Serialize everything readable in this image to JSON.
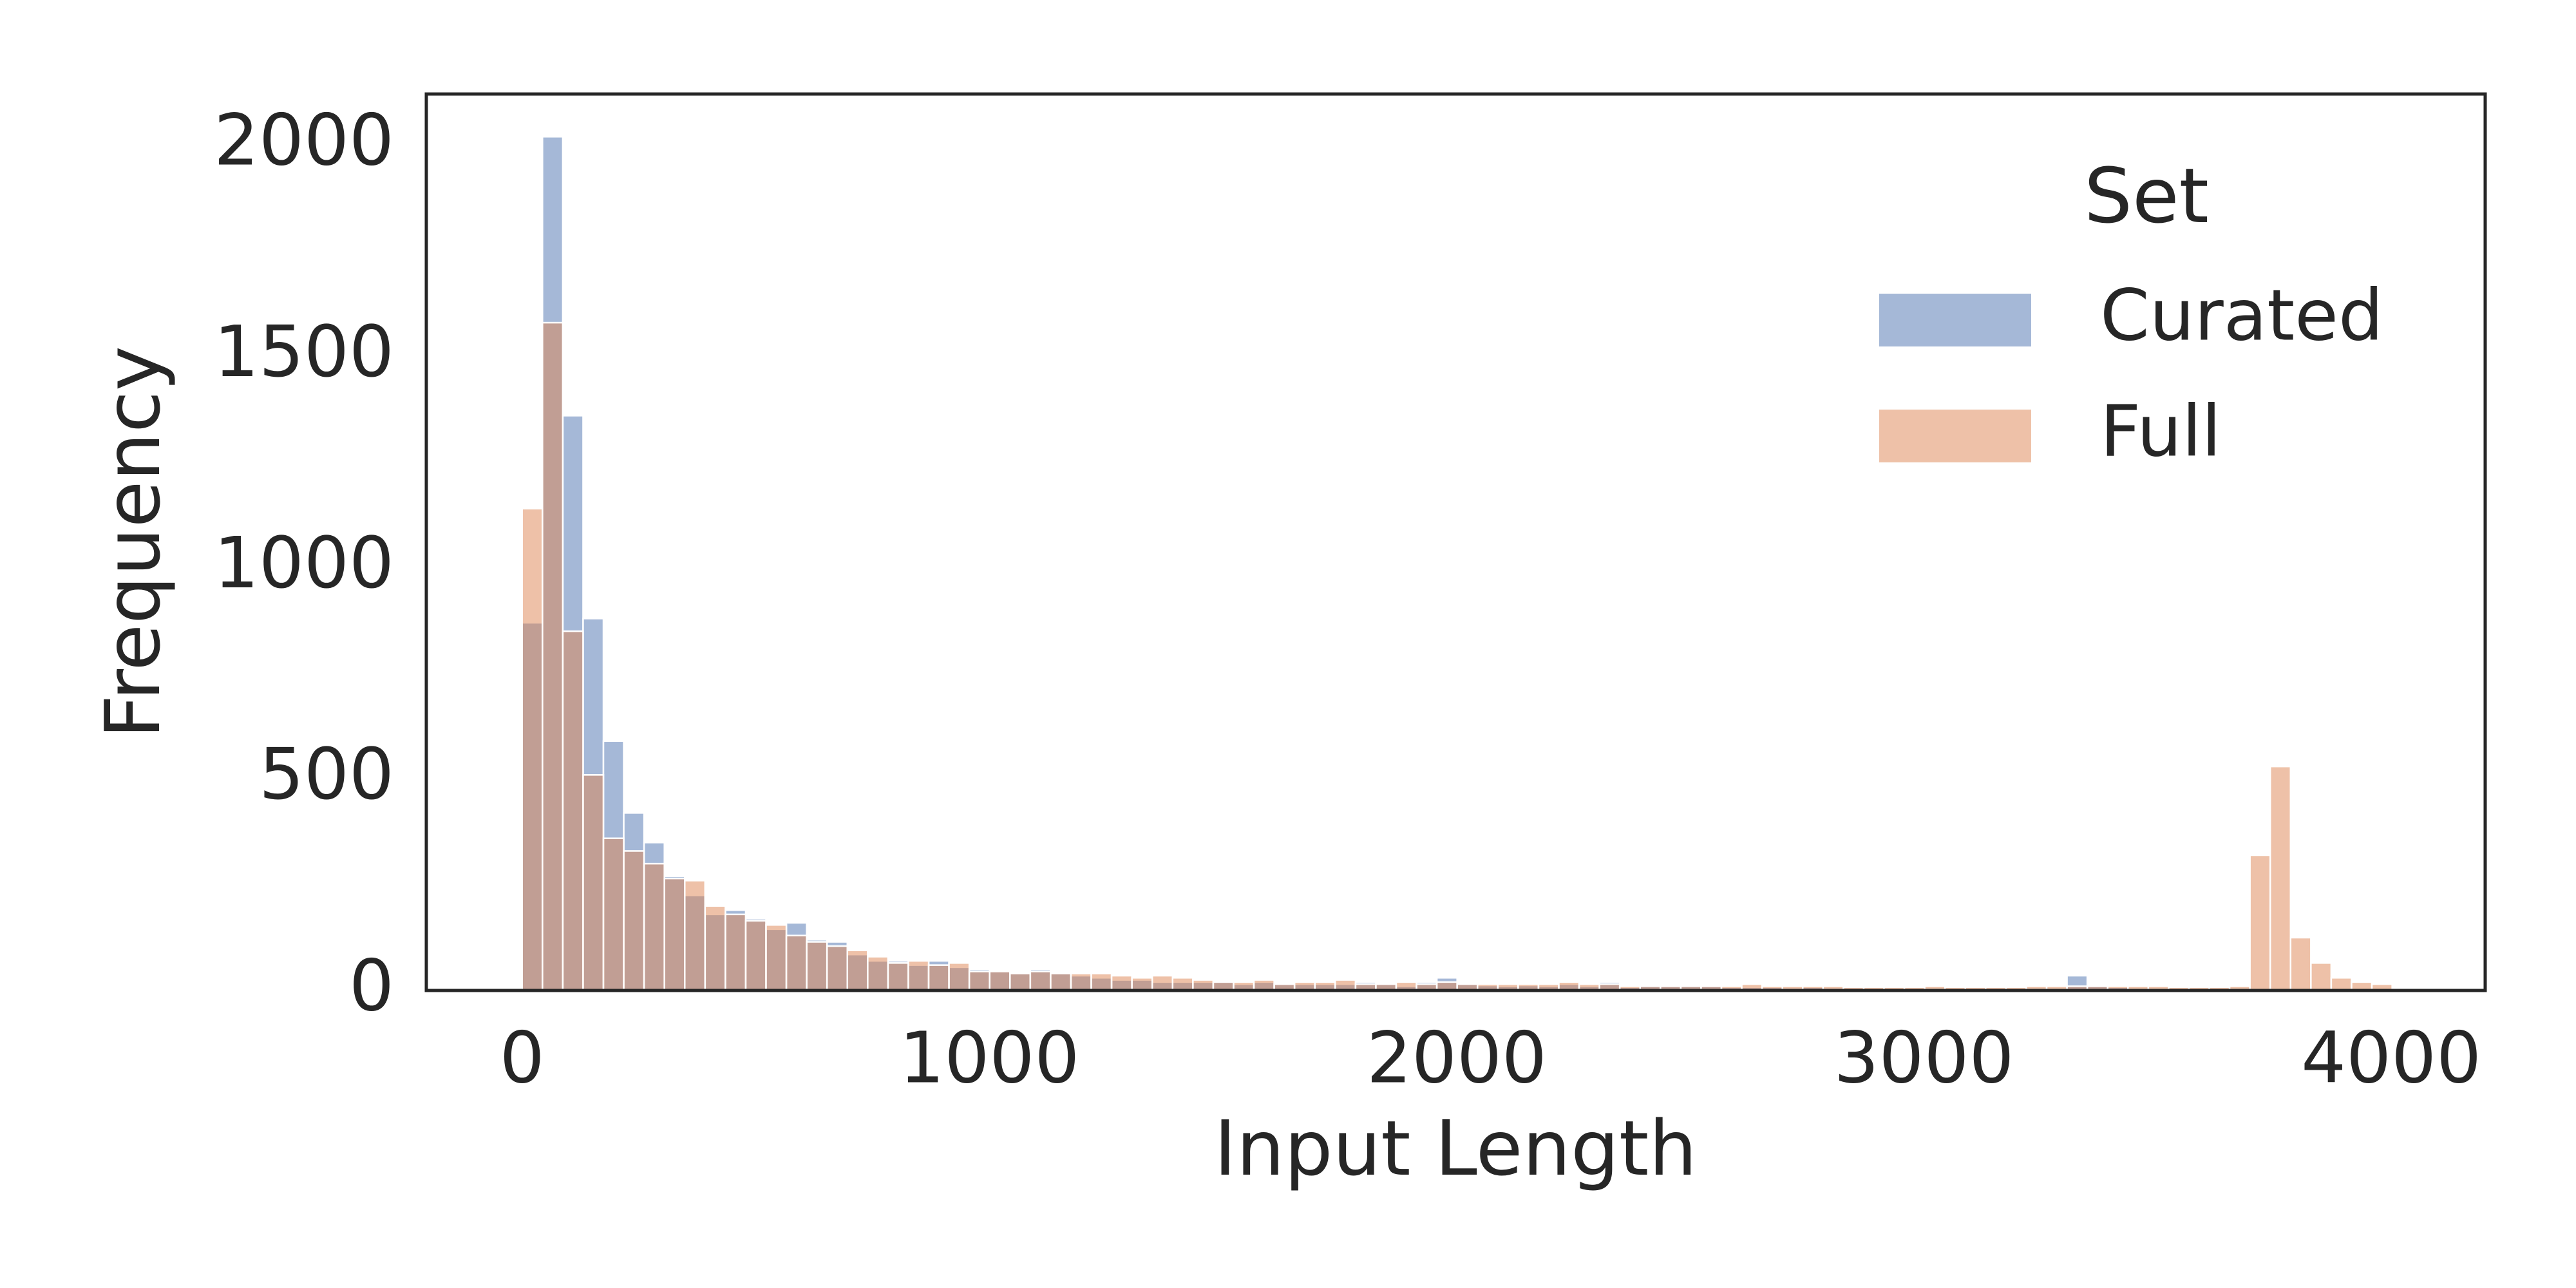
{
  "chart_data": {
    "type": "histogram",
    "x_label": "Input Length",
    "y_label": "Frequency",
    "legend_title": "Set",
    "legend_position": "upper right",
    "grid": false,
    "xlim": [
      -205,
      4201
    ],
    "ylim": [
      0,
      2121
    ],
    "xticks": [
      0,
      1000,
      2000,
      3000,
      4000
    ],
    "yticks": [
      0,
      500,
      1000,
      1500,
      2000
    ],
    "bins": [
      0,
      43.5,
      87,
      130.5,
      174,
      217.5,
      261,
      304.5,
      348,
      391.5,
      435,
      478.5,
      522,
      565.5,
      609,
      652.5,
      696,
      739.5,
      783,
      826.5,
      870,
      913.5,
      957,
      1000.5,
      1044,
      1087.5,
      1131,
      1174.5,
      1218,
      1261.5,
      1305,
      1348.5,
      1392,
      1435.5,
      1479,
      1522.5,
      1566,
      1609.5,
      1653,
      1696.5,
      1740,
      1783.5,
      1827,
      1870.5,
      1914,
      1957.5,
      2001,
      2044.5,
      2088,
      2131.5,
      2175,
      2218.5,
      2262,
      2305.5,
      2349,
      2392.5,
      2436,
      2479.5,
      2523,
      2566.5,
      2610,
      2653.5,
      2697,
      2740.5,
      2784,
      2827.5,
      2871,
      2914.5,
      2958,
      3001.5,
      3045,
      3088.5,
      3132,
      3175.5,
      3219,
      3262.5,
      3306,
      3349.5,
      3393,
      3436.5,
      3480,
      3523.5,
      3567,
      3610.5,
      3654,
      3697.5,
      3741,
      3784.5,
      3828,
      3871.5,
      3915,
      3958.5,
      4002
    ],
    "series": [
      {
        "name": "Curated",
        "color": "#4c72b0",
        "values": [
          870,
          2020,
          1360,
          880,
          590,
          420,
          350,
          270,
          225,
          180,
          190,
          170,
          145,
          160,
          120,
          115,
          85,
          70,
          70,
          60,
          70,
          55,
          50,
          45,
          40,
          50,
          40,
          35,
          30,
          25,
          25,
          20,
          20,
          20,
          20,
          15,
          20,
          15,
          15,
          15,
          15,
          20,
          15,
          10,
          20,
          30,
          15,
          12,
          10,
          12,
          10,
          15,
          10,
          20,
          8,
          12,
          10,
          12,
          10,
          8,
          8,
          8,
          6,
          8,
          6,
          6,
          5,
          5,
          5,
          5,
          5,
          5,
          5,
          5,
          5,
          5,
          35,
          10,
          8,
          5,
          5,
          4,
          3,
          3,
          3,
          2,
          2,
          1,
          1,
          0,
          0,
          0
        ]
      },
      {
        "name": "Full",
        "color": "#dd8452",
        "values": [
          1140,
          1580,
          850,
          510,
          360,
          330,
          300,
          265,
          260,
          200,
          180,
          165,
          155,
          130,
          115,
          105,
          95,
          80,
          65,
          70,
          60,
          65,
          45,
          45,
          40,
          45,
          40,
          40,
          40,
          35,
          30,
          35,
          30,
          25,
          20,
          20,
          25,
          15,
          20,
          20,
          25,
          15,
          15,
          20,
          15,
          20,
          15,
          15,
          15,
          15,
          15,
          20,
          15,
          15,
          10,
          10,
          10,
          10,
          10,
          10,
          15,
          10,
          10,
          10,
          10,
          8,
          8,
          8,
          8,
          10,
          8,
          8,
          8,
          8,
          10,
          10,
          10,
          10,
          10,
          10,
          10,
          8,
          8,
          8,
          10,
          320,
          530,
          125,
          65,
          30,
          20,
          15
        ]
      }
    ]
  }
}
